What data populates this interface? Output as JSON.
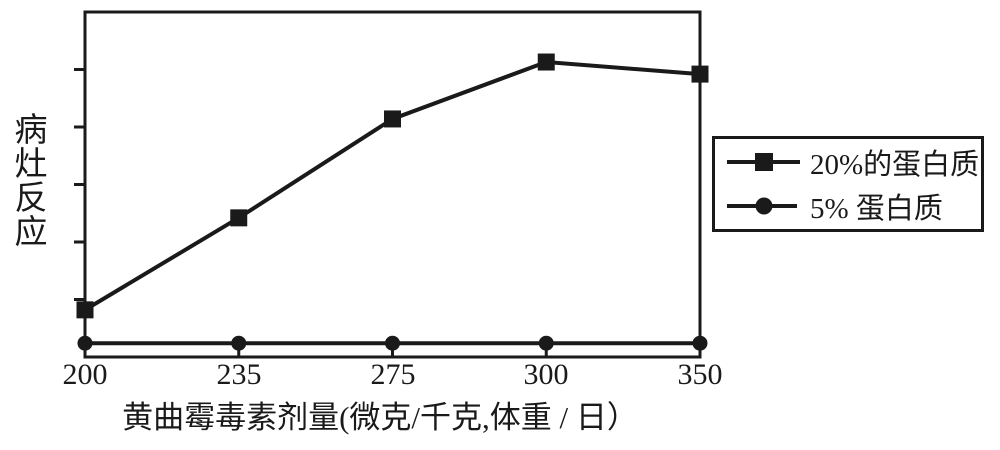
{
  "chart_data": {
    "type": "line",
    "title": "",
    "categories": [
      "200",
      "235",
      "275",
      "300",
      "350"
    ],
    "series": [
      {
        "name": "20%的蛋白质",
        "marker": "square",
        "values": [
          0.82,
          2.42,
          4.14,
          5.13,
          4.92
        ]
      },
      {
        "name": "5% 蛋白质",
        "marker": "circle",
        "values": [
          0.24,
          0.24,
          0.24,
          0.24,
          0.24
        ]
      }
    ],
    "xlabel": "黄曲霉毒素剂量(微克/千克,体重 / 日）",
    "ylabel": "病灶反应",
    "ylim": [
      0,
      6
    ],
    "y_ticks": [
      1,
      2,
      3,
      4,
      5
    ],
    "grid": false,
    "legend_position": "right",
    "color": "#1a1a1a",
    "background": "#ffffff"
  }
}
